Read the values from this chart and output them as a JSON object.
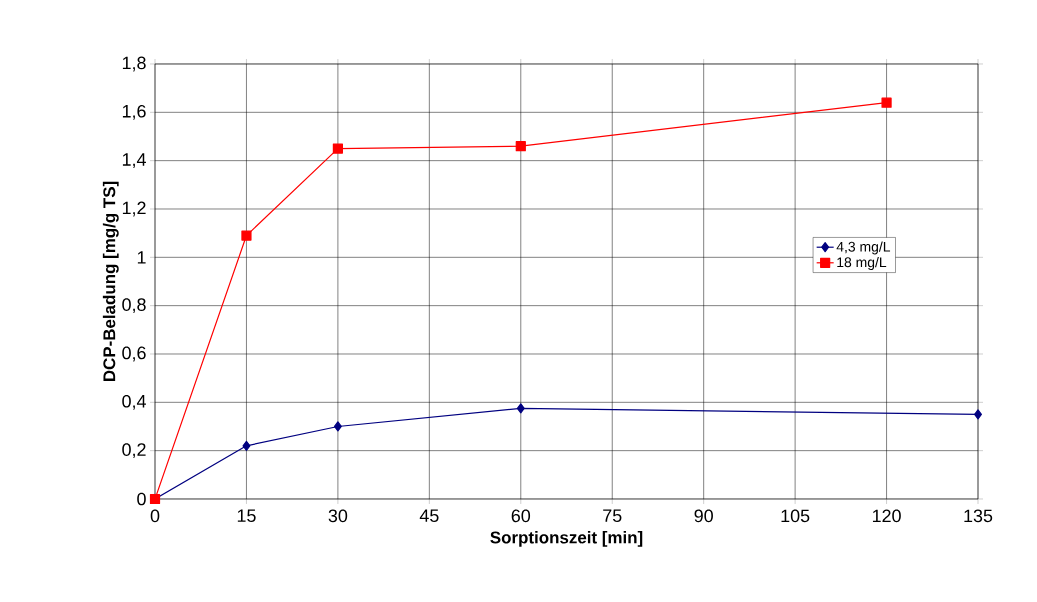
{
  "chart_data": {
    "type": "line",
    "xlabel": "Sorptionszeit [min]",
    "ylabel": "DCP-Beladung [mg/g TS]",
    "series": [
      {
        "name": "4,3 mg/L",
        "color": "#000080",
        "marker": "diamond",
        "x": [
          0,
          15,
          30,
          60,
          135
        ],
        "values": [
          0,
          0.22,
          0.3,
          0.375,
          0.35
        ]
      },
      {
        "name": "18 mg/L",
        "color": "#ff0000",
        "marker": "square",
        "x": [
          0,
          15,
          30,
          60,
          120
        ],
        "values": [
          0,
          1.09,
          1.45,
          1.46,
          1.64
        ]
      }
    ],
    "xlim": [
      0,
      135
    ],
    "xticks": [
      0,
      15,
      30,
      45,
      60,
      75,
      90,
      105,
      120,
      135
    ],
    "ylim": [
      0,
      1.8
    ],
    "yticks": [
      0,
      {
        "value": 0.2,
        "label": "0,2"
      },
      {
        "value": 0.4,
        "label": "0,4"
      },
      {
        "value": 0.6,
        "label": "0,6"
      },
      {
        "value": 0.8,
        "label": "0,8"
      },
      1,
      {
        "value": 1.2,
        "label": "1,2"
      },
      {
        "value": 1.4,
        "label": "1,4"
      },
      {
        "value": 1.6,
        "label": "1,6"
      },
      {
        "value": 1.8,
        "label": "1,8"
      }
    ],
    "grid": true,
    "legend": "right",
    "line_style": "solid"
  }
}
